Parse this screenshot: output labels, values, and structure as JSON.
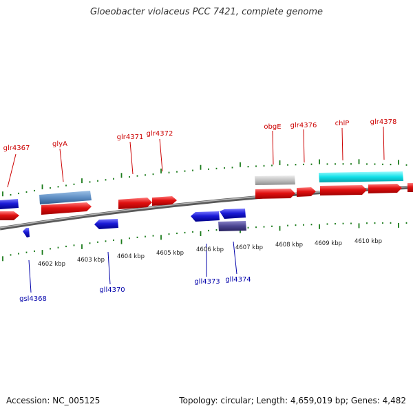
{
  "title": "Gloeobacter violaceus PCC 7421, complete genome",
  "footer": {
    "accession": "Accession: NC_005125",
    "topology": "Topology: circular; Length: 4,659,019 bp; Genes: 4,482"
  },
  "colors": {
    "forward_gene": "#e01010",
    "reverse_gene": "#1a1ad6",
    "steelblue_gene": "#5f8fc4",
    "gray_gene": "#c0c0c0",
    "cyan_gene": "#12e0e8",
    "slate_gene": "#4b4490",
    "forward_label": "#cc0000",
    "reverse_label": "#0000aa",
    "tick": "#1a7a1a",
    "backbone": "#8a8a8a"
  },
  "scale_labels": [
    {
      "label": "4602 kbp",
      "kbp": 4602
    },
    {
      "label": "4603 kbp",
      "kbp": 4603
    },
    {
      "label": "4604 kbp",
      "kbp": 4604
    },
    {
      "label": "4605 kbp",
      "kbp": 4605
    },
    {
      "label": "4606 kbp",
      "kbp": 4606
    },
    {
      "label": "4607 kbp",
      "kbp": 4607
    },
    {
      "label": "4608 kbp",
      "kbp": 4608
    },
    {
      "label": "4609 kbp",
      "kbp": 4609
    },
    {
      "label": "4610 kbp",
      "kbp": 4610
    }
  ],
  "gene_labels": [
    {
      "name": "glr4367",
      "strand": "forward"
    },
    {
      "name": "glyA",
      "strand": "forward"
    },
    {
      "name": "glr4371",
      "strand": "forward"
    },
    {
      "name": "glr4372",
      "strand": "forward"
    },
    {
      "name": "obgE",
      "strand": "forward"
    },
    {
      "name": "glr4376",
      "strand": "forward"
    },
    {
      "name": "chlP",
      "strand": "forward"
    },
    {
      "name": "glr4378",
      "strand": "forward"
    },
    {
      "name": "gsl4368",
      "strand": "reverse"
    },
    {
      "name": "gll4370",
      "strand": "reverse"
    },
    {
      "name": "gll4373",
      "strand": "reverse"
    },
    {
      "name": "gll4374",
      "strand": "reverse"
    }
  ]
}
